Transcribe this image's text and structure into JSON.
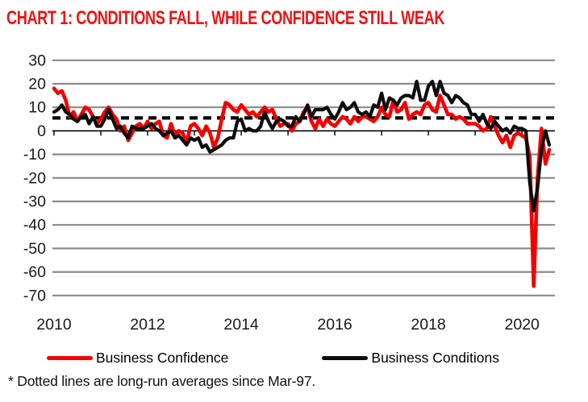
{
  "title": "CHART 1: CONDITIONS FALL, WHILE CONFIDENCE STILL WEAK",
  "footnote": "* Dotted lines are long-run averages since Mar-97.",
  "colors": {
    "title": "#ee1212",
    "confidence": "#f40000",
    "conditions": "#0d0d0d",
    "gridline": "#8a8a8a",
    "axis": "#000000",
    "dashed_average": "#000000",
    "text": "#1a1a1a"
  },
  "legend": [
    {
      "label": "Business Confidence",
      "color": "#f40000"
    },
    {
      "label": "Business Conditions",
      "color": "#0d0d0d"
    }
  ],
  "chart_data": {
    "type": "line",
    "title": "CHART 1: CONDITIONS FALL, WHILE CONFIDENCE STILL WEAK",
    "xlabel": "",
    "ylabel": "",
    "x_start": "2010-01",
    "x_end": "2020-08",
    "frequency": "monthly",
    "x_tick_labels": [
      "2010",
      "2012",
      "2014",
      "2016",
      "2018",
      "2020"
    ],
    "y_ticks": [
      30,
      20,
      10,
      0,
      -10,
      -20,
      -30,
      -40,
      -50,
      -60,
      -70
    ],
    "ylim": [
      -70,
      30
    ],
    "grid": "horizontal",
    "legend_position": "bottom",
    "annotation": "Dotted lines are long-run averages since Mar-97.",
    "long_run_averages": {
      "Business Confidence": 5.8,
      "Business Conditions": 5.2
    },
    "series": [
      {
        "name": "Business Confidence",
        "color": "#f40000",
        "values": [
          18,
          16,
          17,
          13,
          6,
          8,
          4,
          7,
          10,
          9,
          6,
          3,
          5,
          8,
          10,
          7,
          5,
          0,
          2,
          -4,
          -1,
          2,
          3,
          1,
          4,
          1,
          3,
          4,
          -2,
          -3,
          3,
          -2,
          0,
          -1,
          -5,
          2,
          3,
          1,
          -2,
          2,
          -1,
          -7,
          -3,
          5,
          12,
          11,
          9,
          8,
          11,
          9,
          7,
          8,
          6,
          8,
          10,
          8,
          9,
          5,
          2,
          3,
          3,
          0,
          3,
          4,
          8,
          10,
          4,
          1,
          5,
          2,
          5,
          3,
          2,
          4,
          6,
          5,
          3,
          6,
          4,
          6,
          6,
          5,
          4,
          6,
          10,
          7,
          6,
          13,
          8,
          9,
          12,
          5,
          7,
          8,
          7,
          11,
          12,
          9,
          8,
          15,
          11,
          7,
          7,
          5,
          6,
          5,
          3,
          3,
          3,
          2,
          0,
          1,
          6,
          2,
          -2,
          -5,
          -2,
          -7,
          -2,
          -1,
          -2,
          -3,
          -11,
          -66,
          -20,
          1,
          -14,
          -8
        ]
      },
      {
        "name": "Business Conditions",
        "color": "#0d0d0d",
        "values": [
          8,
          9,
          11,
          8,
          7,
          5,
          4,
          6,
          7,
          3,
          6,
          2,
          2,
          5,
          9,
          5,
          1,
          2,
          -1,
          -3,
          2,
          1,
          1,
          1,
          2,
          3,
          1,
          0,
          -2,
          -1,
          0,
          -3,
          -2,
          -4,
          -6,
          -3,
          -4,
          -3,
          -7,
          -6,
          -9,
          -8,
          -7,
          -6,
          -4,
          -3,
          -3,
          4,
          5,
          0,
          1,
          0,
          0,
          2,
          8,
          4,
          1,
          4,
          5,
          4,
          2,
          2,
          6,
          4,
          7,
          11,
          6,
          9,
          9,
          9,
          10,
          7,
          5,
          8,
          12,
          9,
          10,
          12,
          8,
          7,
          8,
          6,
          11,
          10,
          16,
          9,
          14,
          13,
          11,
          14,
          15,
          15,
          14,
          21,
          13,
          13,
          19,
          21,
          15,
          21,
          16,
          15,
          12,
          15,
          14,
          12,
          11,
          7,
          7,
          4,
          7,
          3,
          1,
          4,
          2,
          0,
          1,
          -1,
          2,
          1,
          1,
          0,
          -22,
          -34,
          -24,
          -8,
          0,
          -6
        ]
      }
    ]
  }
}
